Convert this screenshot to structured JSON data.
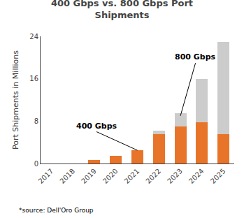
{
  "chart_data": {
    "type": "bar",
    "stacked": true,
    "title": "400 Gbps vs. 800 Gbps Port\nShipments",
    "ylabel": "Port Shipments in Millions",
    "categories": [
      "2017",
      "2018",
      "2019",
      "2020",
      "2021",
      "2022",
      "2023",
      "2024",
      "2025"
    ],
    "series": [
      {
        "color": "#E8742A",
        "values": [
          0.0,
          0.0,
          0.7,
          1.5,
          2.5,
          5.5,
          7.0,
          7.8,
          5.5
        ]
      },
      {
        "color": "#CCCCCC",
        "values": [
          0.0,
          0.0,
          0.0,
          0.0,
          0.0,
          0.7,
          2.5,
          8.2,
          17.5
        ]
      }
    ],
    "ylim": [
      0,
      24
    ],
    "yticks": [
      0,
      8,
      16,
      24
    ],
    "grid": false,
    "annotations": [
      "400 Gbps",
      "800 Gbps"
    ],
    "source": "*source: Dell'Oro Group"
  }
}
